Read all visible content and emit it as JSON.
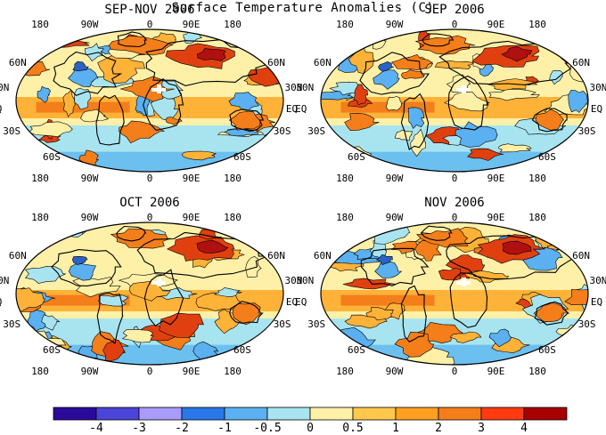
{
  "title": "Surface Temperature Anomalies (C)",
  "colors": {
    "ocean_cool": "#a8e4f0",
    "warm_light": "#fff0a8",
    "warm_mid": "#ffb238",
    "warm_high": "#f47e1a",
    "hot": "#e0400f",
    "very_hot": "#b01010",
    "cool_mid": "#5ab0f0",
    "cool_deep": "#2b62c8",
    "cold": "#3e2a9c",
    "contour": "#000000"
  },
  "chart_data": [
    {
      "type": "heatmap",
      "title": "SEP-NOV 2006",
      "xlabel_ticks": [
        "180",
        "90W",
        "0",
        "90E",
        "180"
      ],
      "ylabel_ticks": [
        "60N",
        "30N",
        "EQ",
        "30S",
        "60S"
      ]
    },
    {
      "type": "heatmap",
      "title": "SEP 2006",
      "xlabel_ticks": [
        "180",
        "90W",
        "0",
        "90E",
        "180"
      ],
      "ylabel_ticks": [
        "60N",
        "30N",
        "EQ",
        "30S",
        "60S"
      ]
    },
    {
      "type": "heatmap",
      "title": "OCT 2006",
      "xlabel_ticks": [
        "180",
        "90W",
        "0",
        "90E",
        "180"
      ],
      "ylabel_ticks": [
        "60N",
        "30N",
        "EQ",
        "30S",
        "60S"
      ]
    },
    {
      "type": "heatmap",
      "title": "NOV 2006",
      "xlabel_ticks": [
        "180",
        "90W",
        "0",
        "90E",
        "180"
      ],
      "ylabel_ticks": [
        "60N",
        "30N",
        "EQ",
        "30S",
        "60S"
      ]
    }
  ],
  "colorbar": {
    "colors": [
      "#2a0a9a",
      "#4a44d8",
      "#a99cf8",
      "#2a78e8",
      "#5ab0f0",
      "#a8e4f0",
      "#fff0a8",
      "#ffc84c",
      "#ffa020",
      "#f47e1a",
      "#ff3a10",
      "#a80000"
    ],
    "tick_labels": [
      "-4",
      "-3",
      "-2",
      "-1",
      "-0.5",
      "0",
      "0.5",
      "1",
      "2",
      "3",
      "4"
    ]
  }
}
